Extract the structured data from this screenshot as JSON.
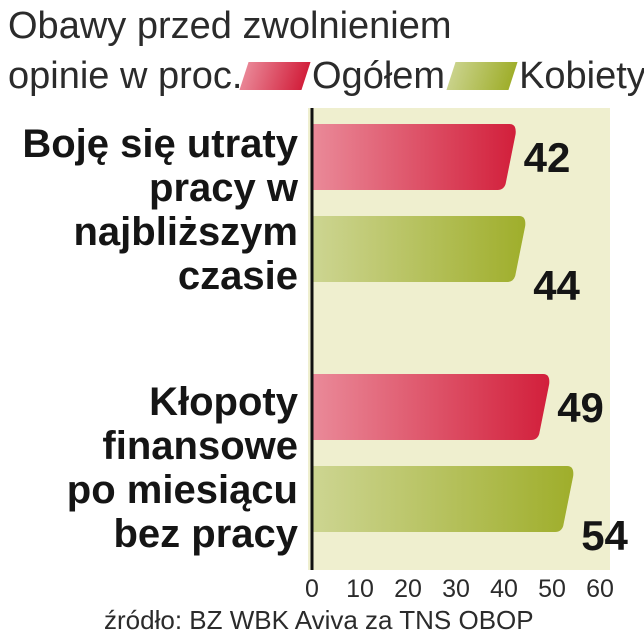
{
  "chart_data": {
    "type": "bar",
    "orientation": "horizontal",
    "title": "Obawy przed zwolnieniem",
    "subtitle": "opinie w proc.",
    "categories": [
      [
        "Boję się utraty",
        "pracy w",
        "najbliższym",
        "czasie"
      ],
      [
        "Kłopoty",
        "finansowe",
        "po miesiącu",
        "bez pracy"
      ]
    ],
    "series": [
      {
        "name": "Ogółem",
        "values": [
          42,
          49
        ],
        "color": "#d21f3b"
      },
      {
        "name": "Kobiety",
        "values": [
          44,
          54
        ],
        "color": "#9fae2b"
      }
    ],
    "xlim": [
      0,
      60
    ],
    "xticks": [
      "0",
      "10",
      "20",
      "30",
      "40",
      "50",
      "60"
    ],
    "source": "źródło: BZ WBK Aviva za TNS OBOP",
    "legend_position": "top"
  }
}
